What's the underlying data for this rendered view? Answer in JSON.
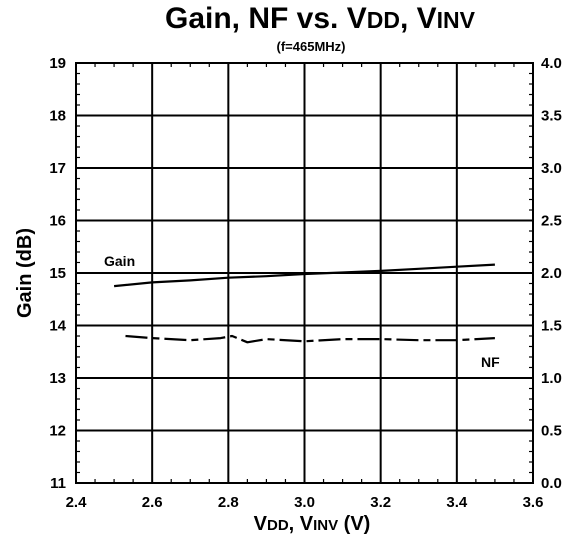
{
  "chart_data": {
    "type": "line",
    "title": {
      "main": "Gain, NF vs. V",
      "vdd_sub": "DD",
      "sep": ", V",
      "vinv_sub": "INV",
      "subtitle": "(f=465MHz)"
    },
    "xlabel": {
      "v1": "V",
      "sub1": "DD",
      "sep": ", V",
      "sub2": "INV",
      "unit": " (V)"
    },
    "ylabel": "Gain (dB)",
    "xlim": [
      2.4,
      3.6
    ],
    "ylim_left": [
      11,
      19
    ],
    "ylim_right": [
      0.0,
      4.0
    ],
    "x_ticks": [
      "2.4",
      "2.6",
      "2.8",
      "3.0",
      "3.2",
      "3.4",
      "3.6"
    ],
    "y_ticks_left": [
      "11",
      "12",
      "13",
      "14",
      "15",
      "16",
      "17",
      "18",
      "19"
    ],
    "y_ticks_right": [
      "0.0",
      "0.5",
      "1.0",
      "1.5",
      "2.0",
      "2.5",
      "3.0",
      "3.5",
      "4.0"
    ],
    "grid": true,
    "series": [
      {
        "name": "Gain",
        "axis": "left",
        "style": "solid",
        "x": [
          2.5,
          2.6,
          2.7,
          2.8,
          2.9,
          3.0,
          3.1,
          3.2,
          3.3,
          3.4,
          3.5
        ],
        "y": [
          14.75,
          14.82,
          14.86,
          14.91,
          14.94,
          14.98,
          15.01,
          15.04,
          15.08,
          15.12,
          15.16
        ]
      },
      {
        "name": "NF",
        "axis": "right",
        "style": "dashed",
        "x": [
          2.53,
          2.6,
          2.7,
          2.78,
          2.81,
          2.85,
          2.9,
          3.0,
          3.1,
          3.2,
          3.3,
          3.4,
          3.5
        ],
        "y": [
          1.4,
          1.38,
          1.36,
          1.38,
          1.4,
          1.34,
          1.37,
          1.35,
          1.37,
          1.37,
          1.36,
          1.36,
          1.38
        ]
      }
    ]
  }
}
